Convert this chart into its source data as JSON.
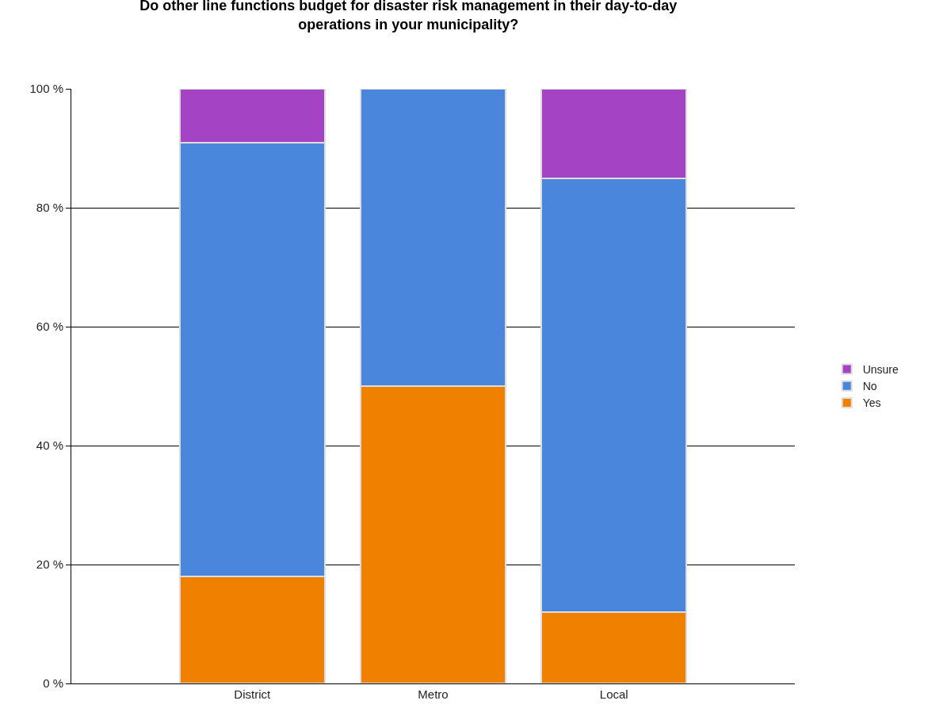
{
  "chart_data": {
    "type": "bar",
    "stacked": true,
    "title": "Do other line functions budget for disaster risk management in their day-to-day operations in your municipality?",
    "categories": [
      "District",
      "Metro",
      "Local"
    ],
    "series": [
      {
        "name": "Yes",
        "color": "#f08000",
        "values": [
          18,
          50,
          12
        ]
      },
      {
        "name": "No",
        "color": "#4a86dc",
        "values": [
          73,
          50,
          73
        ]
      },
      {
        "name": "Unsure",
        "color": "#a444c4",
        "values": [
          9,
          null,
          15
        ]
      }
    ],
    "ylim": [
      0,
      100
    ],
    "yticks": [
      {
        "value": 0,
        "label": "0 %"
      },
      {
        "value": 20,
        "label": "20 %"
      },
      {
        "value": 40,
        "label": "40 %"
      },
      {
        "value": 60,
        "label": "60 %"
      },
      {
        "value": 80,
        "label": "80 %"
      },
      {
        "value": 100,
        "label": "100 %"
      }
    ],
    "grid": "y",
    "legend": "right"
  }
}
